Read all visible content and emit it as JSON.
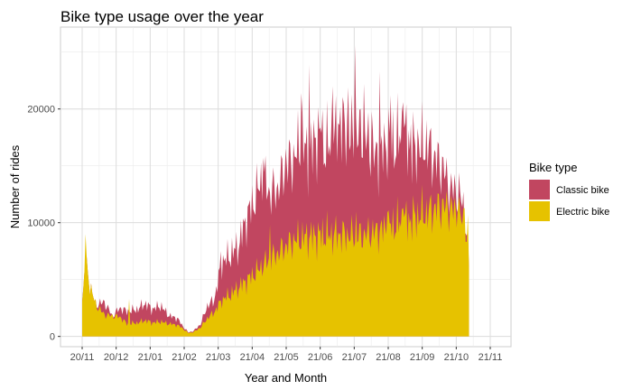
{
  "chart_data": {
    "type": "area",
    "title": "Bike type usage over the year",
    "xlabel": "Year and Month",
    "ylabel": "Number of rides",
    "x_tick_labels": [
      "20/11",
      "20/12",
      "21/01",
      "21/02",
      "21/03",
      "21/04",
      "21/05",
      "21/06",
      "21/07",
      "21/08",
      "21/09",
      "21/10",
      "21/11"
    ],
    "y_tick_values": [
      0,
      10000,
      20000
    ],
    "y_tick_labels": [
      "0",
      "10000",
      "20000"
    ],
    "ylim": [
      -900,
      27200
    ],
    "stacked": true,
    "grid": true,
    "legend": {
      "title": "Bike type",
      "position": "right"
    },
    "colors": {
      "classic": "#c14660",
      "electric": "#e6c200"
    },
    "series": [
      {
        "name": "Classic bike",
        "color": "#c14660",
        "top_values": [
          [
            0,
            3000
          ],
          [
            3,
            6500
          ],
          [
            7,
            4500
          ],
          [
            12,
            2800
          ],
          [
            20,
            3000
          ],
          [
            27,
            1800
          ],
          [
            34,
            2500
          ],
          [
            40,
            2200
          ],
          [
            50,
            2400
          ],
          [
            56,
            2900
          ],
          [
            63,
            2400
          ],
          [
            70,
            2700
          ],
          [
            78,
            1800
          ],
          [
            85,
            1600
          ],
          [
            90,
            900
          ],
          [
            95,
            350
          ],
          [
            100,
            500
          ],
          [
            106,
            1100
          ],
          [
            112,
            2700
          ],
          [
            118,
            3200
          ],
          [
            125,
            6500
          ],
          [
            133,
            7200
          ],
          [
            140,
            8000
          ],
          [
            147,
            10500
          ],
          [
            154,
            12000
          ],
          [
            161,
            14000
          ],
          [
            168,
            12600
          ],
          [
            175,
            13000
          ],
          [
            182,
            15000
          ],
          [
            189,
            15600
          ],
          [
            196,
            17000
          ],
          [
            203,
            15800
          ],
          [
            210,
            17800
          ],
          [
            217,
            16600
          ],
          [
            224,
            16800
          ],
          [
            231,
            19000
          ],
          [
            238,
            17500
          ],
          [
            245,
            17700
          ],
          [
            252,
            17900
          ],
          [
            259,
            16100
          ],
          [
            266,
            15600
          ],
          [
            273,
            17400
          ],
          [
            280,
            16900
          ],
          [
            287,
            17900
          ],
          [
            294,
            16700
          ],
          [
            301,
            16200
          ],
          [
            308,
            17000
          ],
          [
            315,
            15600
          ],
          [
            322,
            15000
          ],
          [
            329,
            13000
          ],
          [
            336,
            12700
          ],
          [
            340,
            11800
          ],
          [
            343,
            10000
          ],
          [
            346,
            6500
          ]
        ],
        "peaks": [
          [
            124,
            7500
          ],
          [
            148,
            11400
          ],
          [
            162,
            15700
          ],
          [
            182,
            16500
          ],
          [
            196,
            21400
          ],
          [
            203,
            23900
          ],
          [
            214,
            17900
          ],
          [
            224,
            22000
          ],
          [
            231,
            20200
          ],
          [
            238,
            21900
          ],
          [
            244,
            25600
          ],
          [
            252,
            22200
          ],
          [
            259,
            19800
          ],
          [
            266,
            23300
          ],
          [
            276,
            21200
          ],
          [
            287,
            20600
          ],
          [
            294,
            18700
          ],
          [
            301,
            17300
          ],
          [
            315,
            16400
          ]
        ]
      },
      {
        "name": "Electric bike",
        "color": "#e6c200",
        "top_values": [
          [
            0,
            3000
          ],
          [
            3,
            6500
          ],
          [
            7,
            4500
          ],
          [
            12,
            2800
          ],
          [
            20,
            1900
          ],
          [
            27,
            1800
          ],
          [
            34,
            1700
          ],
          [
            40,
            1100
          ],
          [
            50,
            1200
          ],
          [
            56,
            1400
          ],
          [
            63,
            1200
          ],
          [
            70,
            1300
          ],
          [
            78,
            1100
          ],
          [
            85,
            1000
          ],
          [
            90,
            700
          ],
          [
            95,
            300
          ],
          [
            100,
            400
          ],
          [
            106,
            800
          ],
          [
            112,
            1600
          ],
          [
            118,
            2100
          ],
          [
            125,
            3200
          ],
          [
            133,
            3700
          ],
          [
            140,
            4300
          ],
          [
            147,
            4900
          ],
          [
            154,
            5500
          ],
          [
            161,
            6200
          ],
          [
            168,
            6800
          ],
          [
            175,
            7300
          ],
          [
            182,
            7900
          ],
          [
            189,
            8400
          ],
          [
            196,
            8600
          ],
          [
            203,
            8800
          ],
          [
            210,
            8800
          ],
          [
            217,
            8900
          ],
          [
            224,
            8900
          ],
          [
            231,
            9000
          ],
          [
            238,
            8900
          ],
          [
            245,
            8800
          ],
          [
            252,
            8900
          ],
          [
            259,
            9100
          ],
          [
            266,
            9300
          ],
          [
            273,
            9500
          ],
          [
            280,
            9800
          ],
          [
            287,
            10100
          ],
          [
            294,
            10300
          ],
          [
            301,
            10600
          ],
          [
            308,
            10800
          ],
          [
            315,
            11200
          ],
          [
            322,
            11400
          ],
          [
            329,
            11200
          ],
          [
            336,
            10800
          ],
          [
            340,
            10200
          ],
          [
            343,
            9200
          ],
          [
            346,
            6500
          ]
        ],
        "peaks": [
          [
            3,
            9000
          ],
          [
            42,
            3300
          ],
          [
            168,
            9800
          ],
          [
            245,
            11000
          ],
          [
            273,
            10900
          ],
          [
            287,
            11300
          ],
          [
            336,
            11200
          ],
          [
            342,
            11300
          ],
          [
            345,
            10700
          ]
        ]
      }
    ]
  }
}
